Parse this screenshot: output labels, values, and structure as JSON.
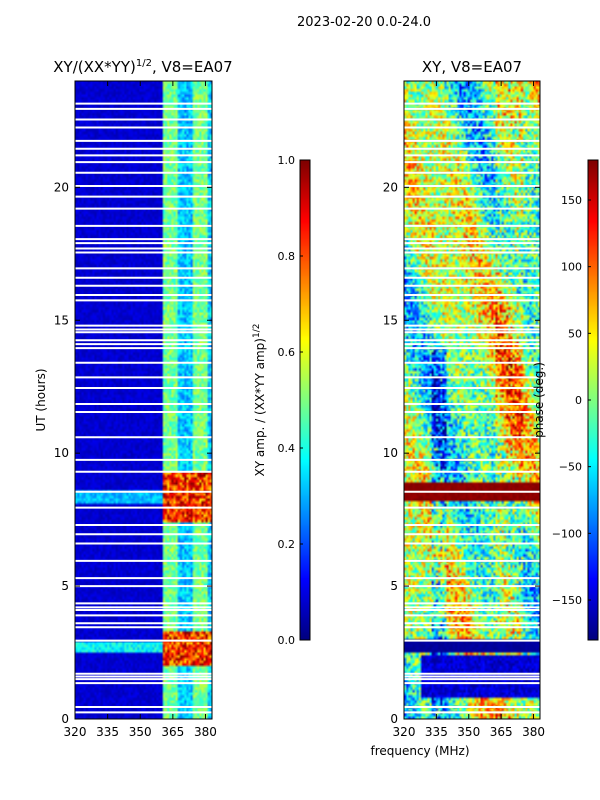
{
  "chart_data": {
    "type": "heatmap",
    "suptitle": "2023-02-20 0.0-24.0",
    "xlabel": "frequency (MHz)",
    "panels": [
      {
        "id": "amp",
        "title_main": "XY/(XX*YY)",
        "title_exp": "1/2",
        "title_rest": ", V8=EA07",
        "ylabel": "UT (hours)",
        "xlim": [
          320,
          383
        ],
        "ylim": [
          0,
          24
        ],
        "xticks": [
          "320",
          "335",
          "350",
          "365",
          "380"
        ],
        "xtick_values": [
          320,
          335,
          350,
          365,
          380
        ],
        "yticks": [
          "0",
          "5",
          "10",
          "15",
          "20"
        ],
        "ytick_values": [
          0,
          5,
          10,
          15,
          20
        ],
        "colorbar": {
          "label_main": "XY amp. / (XX*YY amp)",
          "label_exp": "1/2",
          "range": [
            0.0,
            1.0
          ],
          "ticks": [
            "0.0",
            "0.2",
            "0.4",
            "0.6",
            "0.8",
            "1.0"
          ],
          "tick_values": [
            0.0,
            0.2,
            0.4,
            0.6,
            0.8,
            1.0
          ]
        },
        "description_values": {
          "background_amp": 0.08,
          "band_start_mhz": 360,
          "high_amp_hours": [
            [
              2.0,
              3.3
            ],
            [
              7.4,
              9.3
            ]
          ]
        }
      },
      {
        "id": "phase",
        "title_main": "XY, V8=EA07",
        "ylabel": "",
        "xlim": [
          320,
          383
        ],
        "ylim": [
          0,
          24
        ],
        "xticks": [
          "320",
          "335",
          "350",
          "365",
          "380"
        ],
        "xtick_values": [
          320,
          335,
          350,
          365,
          380
        ],
        "yticks": [
          "0",
          "5",
          "10",
          "15",
          "20"
        ],
        "ytick_values": [
          0,
          5,
          10,
          15,
          20
        ],
        "colorbar": {
          "label_main": "phase (deg.)",
          "range": [
            -180,
            180
          ],
          "ticks": [
            "−150",
            "−100",
            "−50",
            "0",
            "50",
            "100",
            "150"
          ],
          "tick_values": [
            -150,
            -100,
            -50,
            0,
            50,
            100,
            150
          ]
        }
      }
    ],
    "flagged_hours": [
      0.25,
      0.45,
      1.35,
      1.5,
      1.6,
      1.7,
      2.95,
      3.45,
      3.6,
      3.9,
      4.1,
      4.2,
      4.35,
      5.0,
      5.3,
      5.95,
      6.6,
      6.95,
      7.3,
      7.95,
      8.55,
      9.3,
      9.75,
      10.6,
      11.55,
      11.85,
      12.45,
      12.85,
      13.4,
      13.95,
      14.1,
      14.25,
      14.55,
      14.65,
      14.8,
      15.75,
      15.95,
      16.3,
      16.6,
      16.95,
      17.55,
      17.7,
      17.9,
      18.05,
      18.55,
      19.2,
      19.65,
      20.05,
      20.55,
      20.95,
      21.2,
      21.45,
      21.75,
      22.25,
      22.55,
      22.95,
      23.15
    ]
  }
}
